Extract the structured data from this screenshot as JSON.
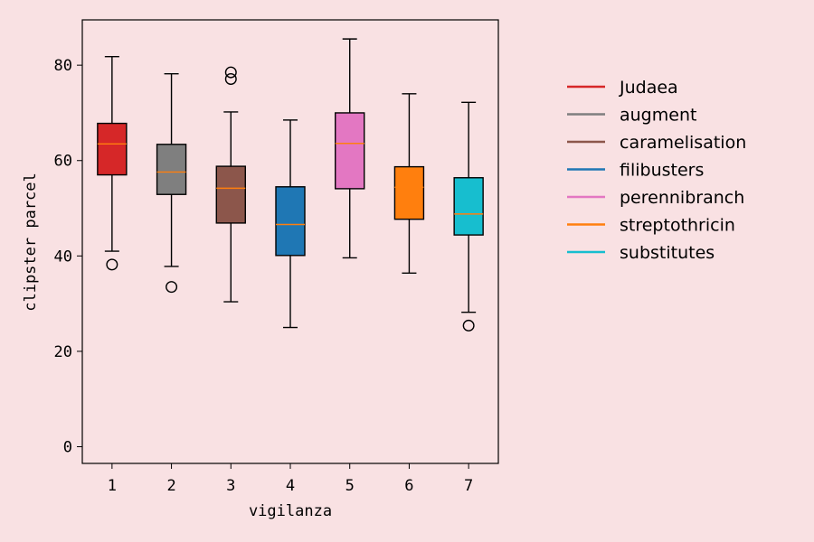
{
  "colors": {
    "background": "#f9e1e3",
    "plot_background": "#f9e1e3",
    "axis": "#000000",
    "median": "#ff7f0e"
  },
  "chart_data": {
    "type": "box",
    "xlabel": "vigilanza",
    "ylabel": "clipster parcel",
    "ylim": [
      -3.5,
      89.5
    ],
    "xlim": [
      0.5,
      7.5
    ],
    "yticks": [
      0,
      20,
      40,
      60,
      80
    ],
    "categories": [
      "1",
      "2",
      "3",
      "4",
      "5",
      "6",
      "7"
    ],
    "legend_position": "right, outside plot",
    "series": [
      {
        "name": "Judaea",
        "x": "1",
        "color": "#d62728",
        "whisker_low": 41.0,
        "q1": 57.0,
        "median": 63.5,
        "q3": 67.8,
        "whisker_high": 81.8,
        "outliers": [
          38.2
        ]
      },
      {
        "name": "augment",
        "x": "2",
        "color": "#7f7f7f",
        "whisker_low": 37.8,
        "q1": 52.9,
        "median": 57.6,
        "q3": 63.4,
        "whisker_high": 78.2,
        "outliers": [
          33.5
        ]
      },
      {
        "name": "caramelisation",
        "x": "3",
        "color": "#8c564b",
        "whisker_low": 30.4,
        "q1": 46.9,
        "median": 54.2,
        "q3": 58.8,
        "whisker_high": 70.2,
        "outliers": [
          77.1,
          78.5
        ]
      },
      {
        "name": "filibusters",
        "x": "4",
        "color": "#1f77b4",
        "whisker_low": 25.0,
        "q1": 40.1,
        "median": 46.6,
        "q3": 54.5,
        "whisker_high": 68.5,
        "outliers": []
      },
      {
        "name": "perennibranch",
        "x": "5",
        "color": "#e377c2",
        "whisker_low": 39.6,
        "q1": 54.1,
        "median": 63.6,
        "q3": 70.0,
        "whisker_high": 85.5,
        "outliers": []
      },
      {
        "name": "streptothricin",
        "x": "6",
        "color": "#ff7f0e",
        "whisker_low": 36.4,
        "q1": 47.7,
        "median": 54.4,
        "q3": 58.7,
        "whisker_high": 74.0,
        "outliers": []
      },
      {
        "name": "substitutes",
        "x": "7",
        "color": "#17becf",
        "whisker_low": 28.2,
        "q1": 44.4,
        "median": 48.8,
        "q3": 56.4,
        "whisker_high": 72.2,
        "outliers": [
          25.4
        ]
      }
    ]
  }
}
